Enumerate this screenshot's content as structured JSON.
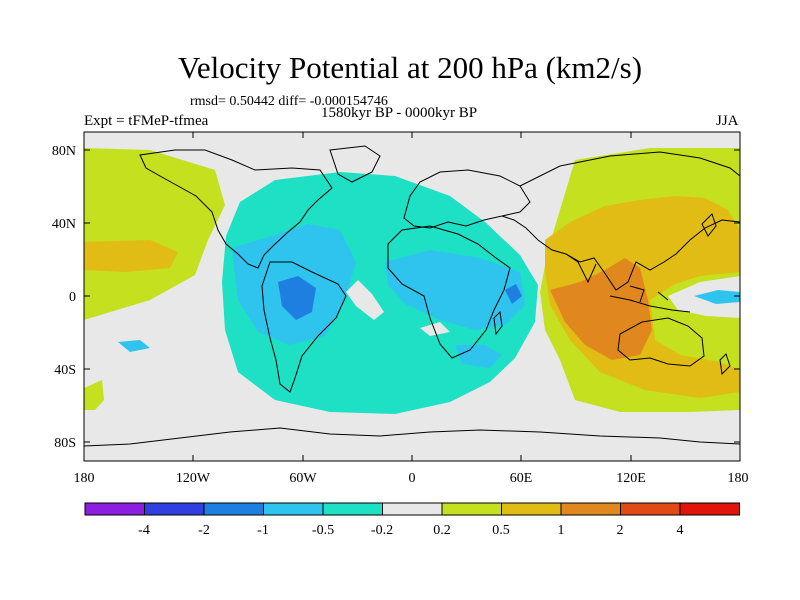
{
  "title": "Velocity Potential at 200 hPa (km2/s)",
  "stats": "rmsd= 0.50442 diff= -0.000154746",
  "experiment": "Expt = tFMeP-tfmea",
  "period": "1580kyr BP - 0000kyr BP",
  "season": "JJA",
  "lat_labels": [
    "80N",
    "40N",
    "0",
    "40S",
    "80S"
  ],
  "lon_labels": [
    "180",
    "120W",
    "60W",
    "0",
    "60E",
    "120E",
    "180"
  ],
  "colorbar": {
    "labels": [
      "-4",
      "-2",
      "-1",
      "-0.5",
      "-0.2",
      "0.2",
      "0.5",
      "1",
      "2",
      "4"
    ],
    "colors": [
      "#8c1ee0",
      "#2f3fe0",
      "#1e7fe0",
      "#2fc4ee",
      "#1ee0c4",
      "#e8e8e8",
      "#c4e01e",
      "#e0bc14",
      "#e0881e",
      "#e04a14",
      "#e0140a"
    ]
  }
}
